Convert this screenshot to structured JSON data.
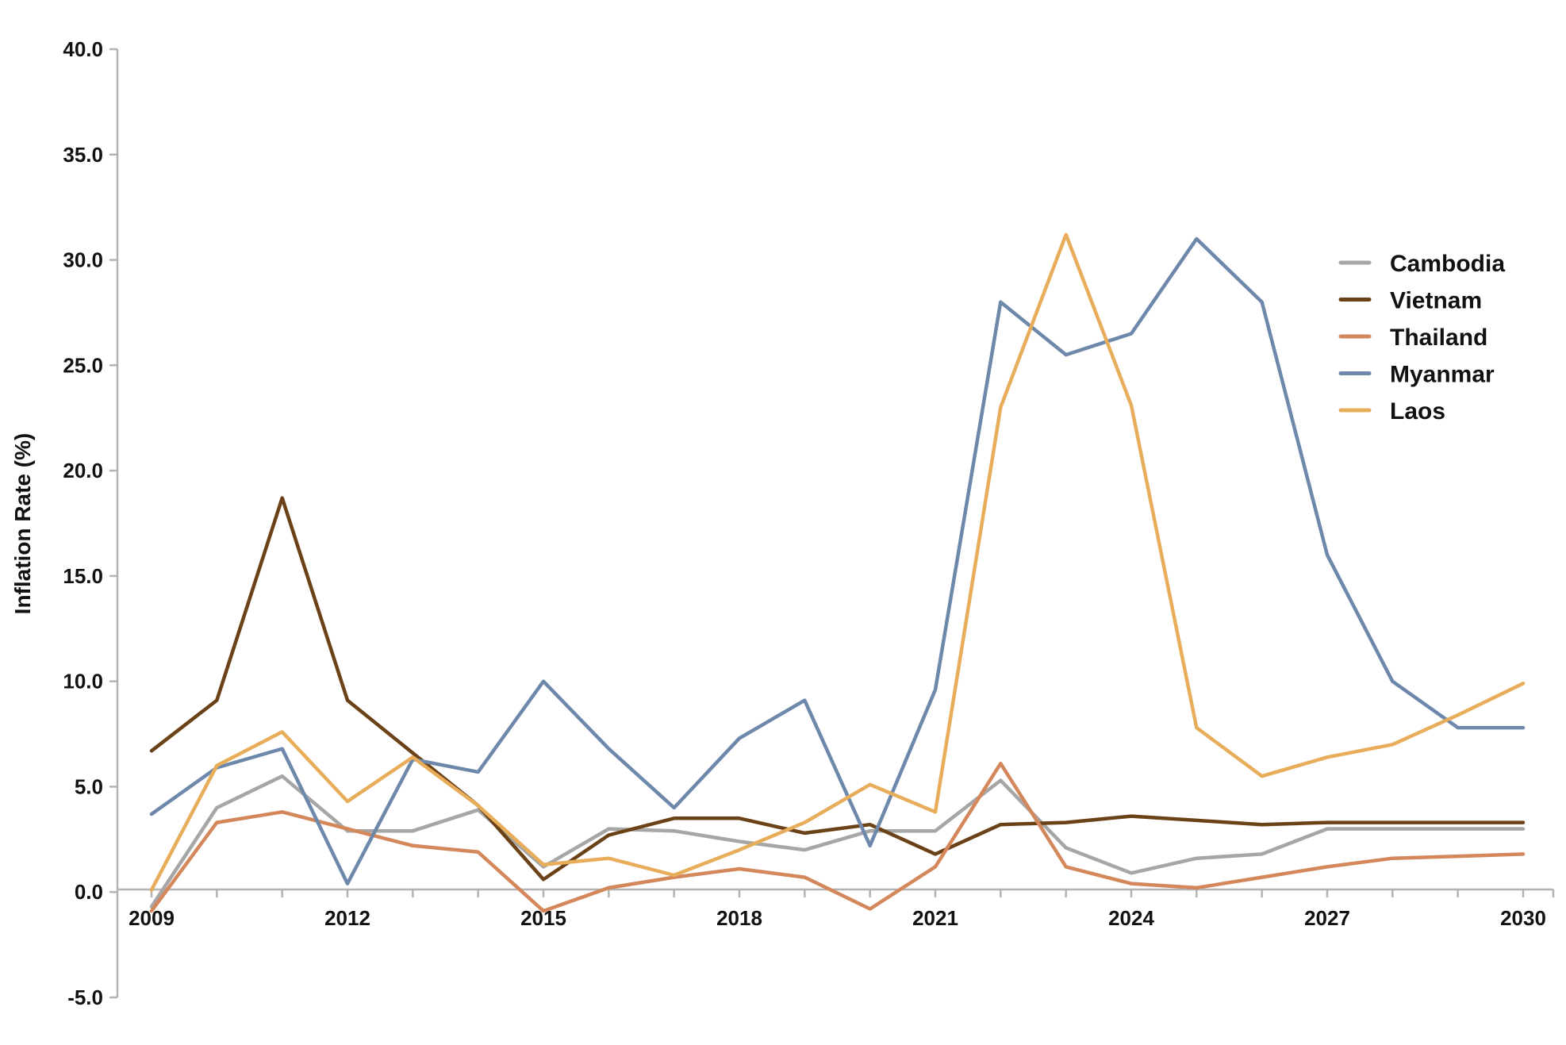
{
  "chart_data": {
    "type": "line",
    "title": "",
    "xlabel": "",
    "ylabel": "Inflation Rate (%)",
    "xlim": [
      2009,
      2030
    ],
    "ylim": [
      -5,
      40
    ],
    "x_ticks": [
      "2009",
      "2012",
      "2015",
      "2018",
      "2021",
      "2024",
      "2027",
      "2030"
    ],
    "y_ticks": [
      "40.0",
      "35.0",
      "30.0",
      "25.0",
      "20.0",
      "15.0",
      "10.0",
      "5.0",
      "0.0",
      "-5.0"
    ],
    "grid": false,
    "legend_position": "right",
    "x": [
      2009,
      2010,
      2011,
      2012,
      2013,
      2014,
      2015,
      2016,
      2017,
      2018,
      2019,
      2020,
      2021,
      2022,
      2023,
      2024,
      2025,
      2026,
      2027,
      2028,
      2029,
      2030
    ],
    "series": [
      {
        "name": "Cambodia",
        "color": "#a6a6a6",
        "values": [
          -0.7,
          4.0,
          5.5,
          2.9,
          2.9,
          3.9,
          1.2,
          3.0,
          2.9,
          2.4,
          2.0,
          2.9,
          2.9,
          5.3,
          2.1,
          0.9,
          1.6,
          1.8,
          3.0,
          3.0,
          3.0,
          3.0
        ]
      },
      {
        "name": "Vietnam",
        "color": "#6b4217",
        "values": [
          6.7,
          9.1,
          18.7,
          9.1,
          6.6,
          4.1,
          0.6,
          2.7,
          3.5,
          3.5,
          2.8,
          3.2,
          1.8,
          3.2,
          3.3,
          3.6,
          3.4,
          3.2,
          3.3,
          3.3,
          3.3,
          3.3
        ]
      },
      {
        "name": "Thailand",
        "color": "#d4875a",
        "values": [
          -0.9,
          3.3,
          3.8,
          3.0,
          2.2,
          1.9,
          -0.9,
          0.2,
          0.7,
          1.1,
          0.7,
          -0.8,
          1.2,
          6.1,
          1.2,
          0.4,
          0.2,
          0.7,
          1.2,
          1.6,
          1.7,
          1.8
        ]
      },
      {
        "name": "Myanmar",
        "color": "#6d88aa",
        "values": [
          3.7,
          5.9,
          6.8,
          0.4,
          6.3,
          5.7,
          10.0,
          6.8,
          4.0,
          7.3,
          9.1,
          2.2,
          9.6,
          28.0,
          25.5,
          26.5,
          31.0,
          28.0,
          16.0,
          10.0,
          7.8,
          7.8
        ]
      },
      {
        "name": "Laos",
        "color": "#e8ad5a",
        "values": [
          0.1,
          6.0,
          7.6,
          4.3,
          6.4,
          4.1,
          1.3,
          1.6,
          0.8,
          2.0,
          3.3,
          5.1,
          3.8,
          23.0,
          31.2,
          23.1,
          7.8,
          5.5,
          6.4,
          7.0,
          8.4,
          9.9
        ]
      }
    ]
  }
}
